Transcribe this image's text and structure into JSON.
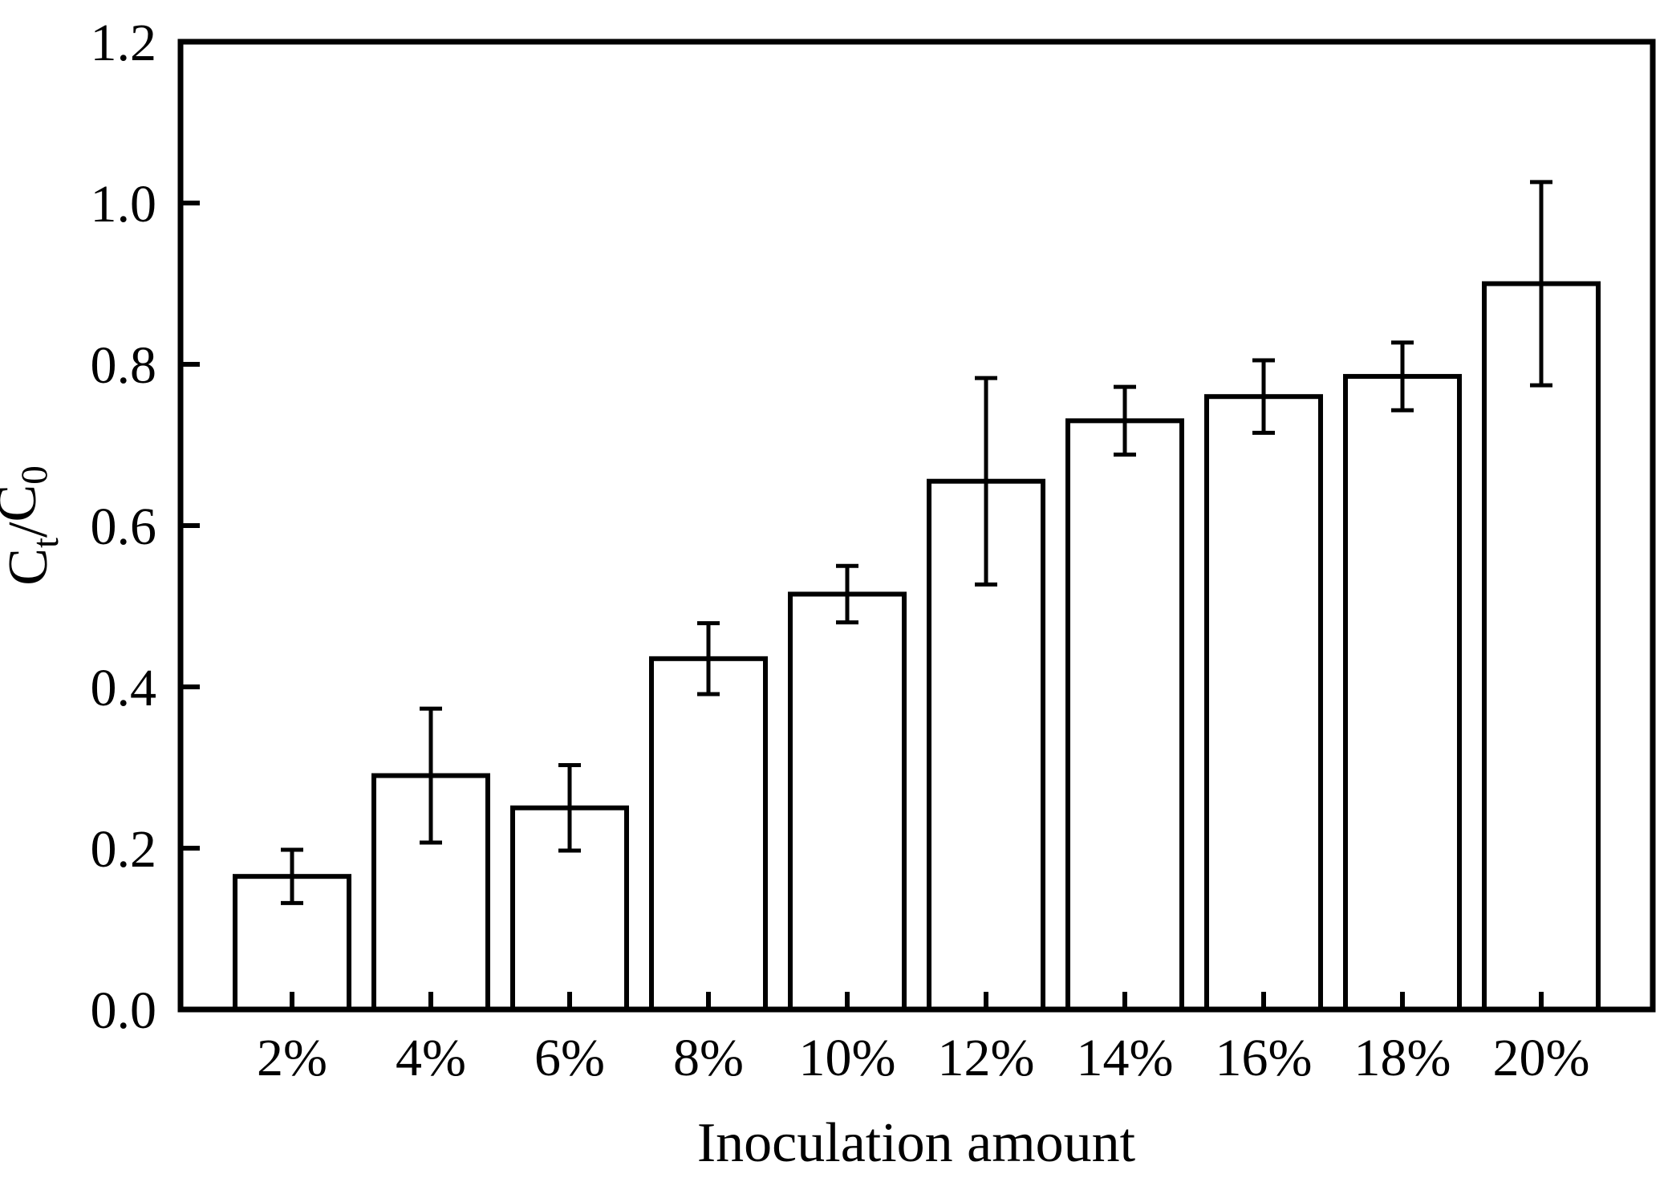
{
  "page": {
    "background": "#ffffff",
    "foreground": "#000000"
  },
  "chart_data": {
    "type": "bar",
    "title": "",
    "xlabel": "Inoculation amount",
    "ylabel": "C_t/C_0",
    "categories": [
      "2%",
      "4%",
      "6%",
      "8%",
      "10%",
      "12%",
      "14%",
      "16%",
      "18%",
      "20%"
    ],
    "values": [
      0.165,
      0.29,
      0.25,
      0.435,
      0.515,
      0.655,
      0.73,
      0.76,
      0.785,
      0.9
    ],
    "errors": [
      0.033,
      0.083,
      0.053,
      0.044,
      0.035,
      0.128,
      0.042,
      0.045,
      0.042,
      0.126
    ],
    "ylim": [
      0.0,
      1.2
    ],
    "yticks": [
      0.0,
      0.2,
      0.4,
      0.6,
      0.8,
      1.0,
      1.2
    ],
    "ytick_labels": [
      "0.0",
      "0.2",
      "0.4",
      "0.6",
      "0.8",
      "1.0",
      "1.2"
    ],
    "bar_fill": "#ffffff",
    "line_color": "#000000",
    "grid": false,
    "legend": null,
    "error_bar_style": "caps-both-directions"
  }
}
